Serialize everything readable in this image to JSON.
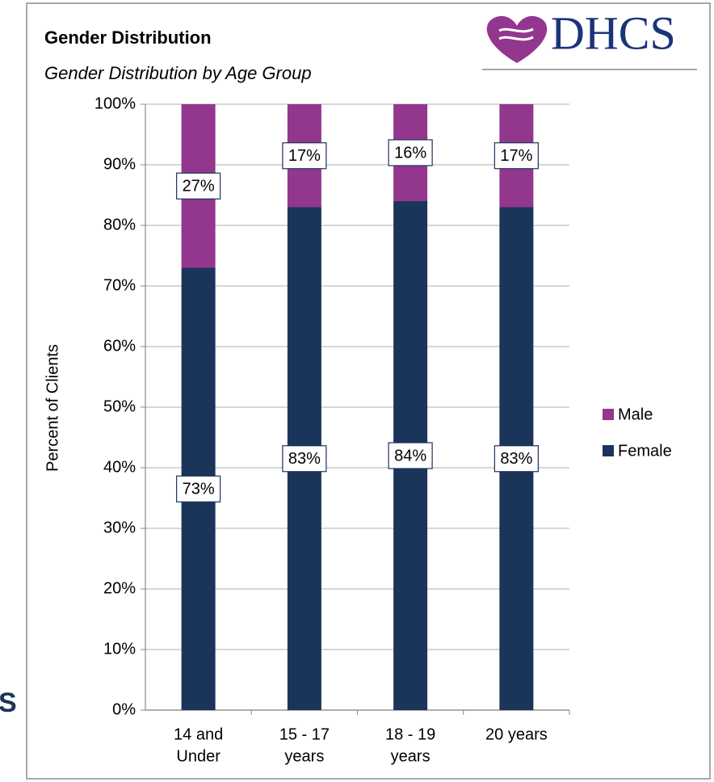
{
  "chart_data": {
    "type": "stacked_bar",
    "title": "Gender Distribution",
    "subtitle": "Gender Distribution by Age Group",
    "logo_text": "DHCS",
    "edge_text": "S",
    "ylabel": "Percent of Clients",
    "categories": [
      [
        "14 and",
        "Under"
      ],
      [
        "15 - 17",
        "years"
      ],
      [
        "18 - 19",
        "years"
      ],
      [
        "20 years"
      ]
    ],
    "series": [
      {
        "name": "Female",
        "color": "#1b3459",
        "values": [
          73,
          83,
          84,
          83
        ],
        "value_labels": [
          "73%",
          "83%",
          "84%",
          "83%"
        ]
      },
      {
        "name": "Male",
        "color": "#93368e",
        "values": [
          27,
          17,
          16,
          17
        ],
        "value_labels": [
          "27%",
          "17%",
          "16%",
          "17%"
        ]
      }
    ],
    "ylim": [
      0,
      100
    ],
    "yticks": [
      {
        "value": 0,
        "label": "0%"
      },
      {
        "value": 10,
        "label": "10%"
      },
      {
        "value": 20,
        "label": "20%"
      },
      {
        "value": 30,
        "label": "30%"
      },
      {
        "value": 40,
        "label": "40%"
      },
      {
        "value": 50,
        "label": "50%"
      },
      {
        "value": 60,
        "label": "60%"
      },
      {
        "value": 70,
        "label": "70%"
      },
      {
        "value": 80,
        "label": "80%"
      },
      {
        "value": 90,
        "label": "90%"
      },
      {
        "value": 100,
        "label": "100%"
      }
    ],
    "grid": true,
    "legend": "right"
  }
}
